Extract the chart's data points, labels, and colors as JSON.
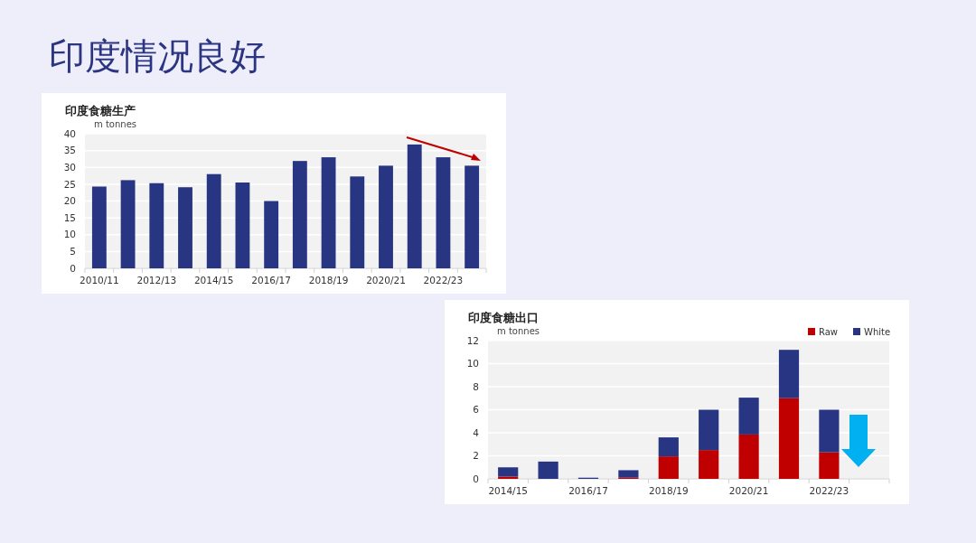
{
  "chart_data": [
    {
      "type": "bar",
      "title": "印度食糖生产",
      "ylabel": "m tonnes",
      "annotations": [
        "印度情况良好"
      ],
      "categories": [
        "2010/11",
        null,
        "2012/13",
        null,
        "2014/15",
        null,
        "2016/17",
        null,
        "2018/19",
        null,
        "2020/21",
        null,
        "2022/23",
        null
      ],
      "values": [
        24.3,
        26.2,
        25.3,
        24.1,
        28.0,
        25.5,
        20.0,
        31.9,
        33.0,
        27.3,
        30.5,
        36.8,
        33.0,
        30.5
      ],
      "color": "#283583",
      "ylim": [
        0,
        40
      ],
      "yticks": [
        0,
        5,
        10,
        15,
        20,
        25,
        30,
        35,
        40
      ],
      "grid": "y"
    },
    {
      "type": "bar",
      "title": "印度食糖出口",
      "ylabel": "m tonnes",
      "stacked": true,
      "legend": "top right",
      "categories": [
        "2014/15",
        null,
        "2016/17",
        null,
        "2018/19",
        null,
        "2020/21",
        null,
        "2022/23",
        null
      ],
      "series": [
        {
          "name": "Raw",
          "color": "#c00000",
          "values": [
            0.2,
            0,
            0,
            0.1,
            1.95,
            2.5,
            3.85,
            7.0,
            2.3,
            null
          ]
        },
        {
          "name": "White",
          "color": "#283583",
          "values": [
            0.8,
            1.5,
            0.1,
            0.65,
            1.65,
            3.5,
            3.2,
            4.2,
            3.7,
            null
          ]
        }
      ],
      "ylim": [
        0,
        12
      ],
      "yticks": [
        0,
        2,
        4,
        6,
        8,
        10,
        12
      ],
      "grid": "y"
    }
  ]
}
